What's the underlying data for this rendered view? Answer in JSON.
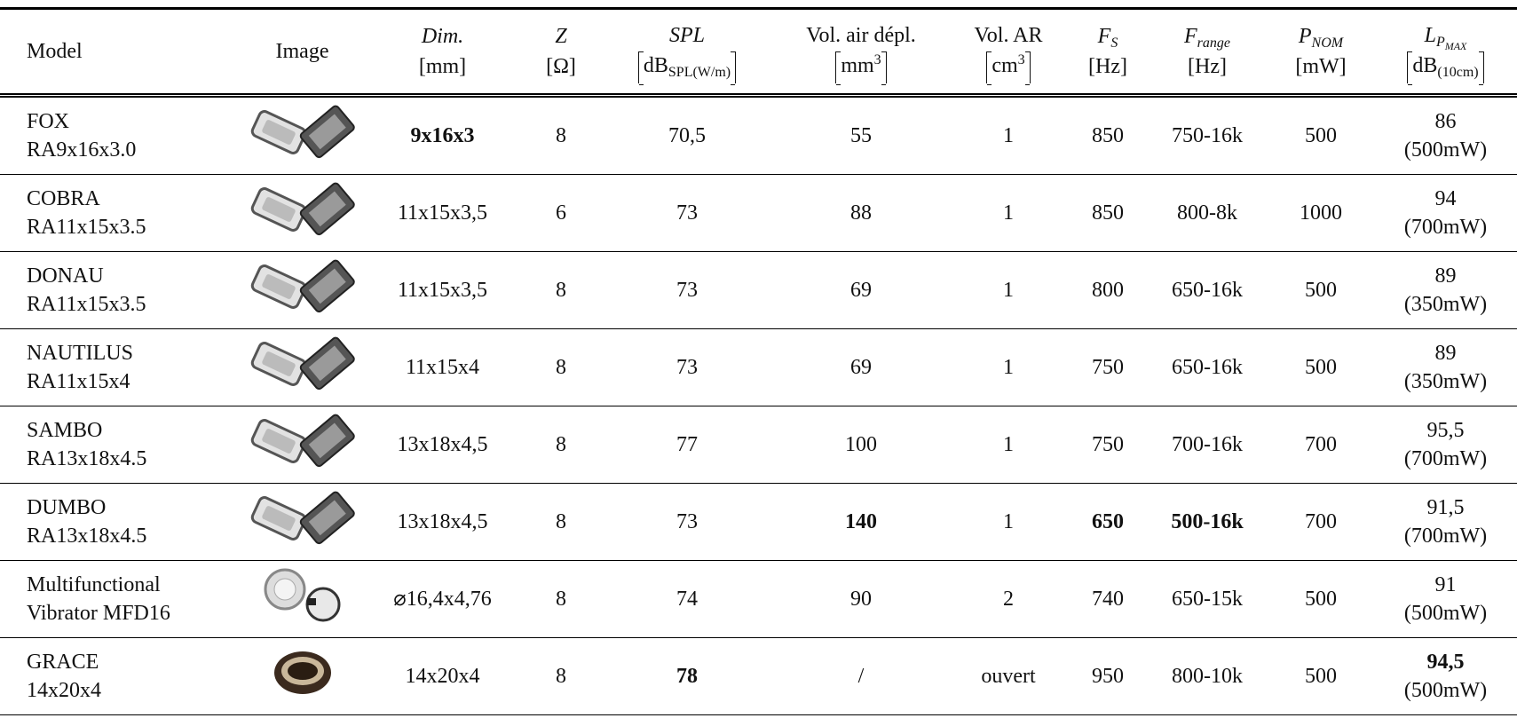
{
  "header": [
    {
      "name": "Model"
    },
    {
      "name": "Image"
    },
    {
      "name": "Dim.",
      "math": true,
      "unit": "[mm]"
    },
    {
      "name": "Z",
      "math": true,
      "unit": "[Ω]"
    },
    {
      "name": "SPL",
      "math": true,
      "unit": "dB",
      "unit_sub": "SPL(W/m)"
    },
    {
      "name": "Vol. air dépl.",
      "unit": "mm",
      "unit_sup": "3"
    },
    {
      "name": "Vol. AR",
      "unit": "cm",
      "unit_sup": "3"
    },
    {
      "name": "F",
      "math": true,
      "name_sub": "S",
      "unit": "[Hz]"
    },
    {
      "name": "F",
      "math": true,
      "name_sub": "range",
      "unit": "[Hz]"
    },
    {
      "name": "P",
      "math": true,
      "name_sub": "NOM",
      "unit": "[mW]"
    },
    {
      "name": "L",
      "math": true,
      "name_sub": "P",
      "name_subsub": "MAX",
      "unit": "dB",
      "unit_sub": "(10cm)"
    }
  ],
  "rows": [
    {
      "model": [
        "FOX",
        "RA9x16x3.0"
      ],
      "dim": "9x16x3",
      "z": "8",
      "spl": "70,5",
      "vol_air": "55",
      "vol_ar": "1",
      "fs": "850",
      "frange": "750-16k",
      "pnom": "500",
      "lmax": [
        "86",
        "(500mW)"
      ],
      "bold": [
        "dim"
      ]
    },
    {
      "model": [
        "COBRA",
        "RA11x15x3.5"
      ],
      "dim": "11x15x3,5",
      "z": "6",
      "spl": "73",
      "vol_air": "88",
      "vol_ar": "1",
      "fs": "850",
      "frange": "800-8k",
      "pnom": "1000",
      "lmax": [
        "94",
        "(700mW)"
      ],
      "bold": []
    },
    {
      "model": [
        "DONAU",
        "RA11x15x3.5"
      ],
      "dim": "11x15x3,5",
      "z": "8",
      "spl": "73",
      "vol_air": "69",
      "vol_ar": "1",
      "fs": "800",
      "frange": "650-16k",
      "pnom": "500",
      "lmax": [
        "89",
        "(350mW)"
      ],
      "bold": []
    },
    {
      "model": [
        "NAUTILUS",
        "RA11x15x4"
      ],
      "dim": "11x15x4",
      "z": "8",
      "spl": "73",
      "vol_air": "69",
      "vol_ar": "1",
      "fs": "750",
      "frange": "650-16k",
      "pnom": "500",
      "lmax": [
        "89",
        "(350mW)"
      ],
      "bold": []
    },
    {
      "model": [
        "SAMBO",
        "RA13x18x4.5"
      ],
      "dim": "13x18x4,5",
      "z": "8",
      "spl": "77",
      "vol_air": "100",
      "vol_ar": "1",
      "fs": "750",
      "frange": "700-16k",
      "pnom": "700",
      "lmax": [
        "95,5",
        "(700mW)"
      ],
      "bold": []
    },
    {
      "model": [
        "DUMBO",
        "RA13x18x4.5"
      ],
      "dim": "13x18x4,5",
      "z": "8",
      "spl": "73",
      "vol_air": "140",
      "vol_ar": "1",
      "fs": "650",
      "frange": "500-16k",
      "pnom": "700",
      "lmax": [
        "91,5",
        "(700mW)"
      ],
      "bold": [
        "vol_air",
        "fs",
        "frange"
      ]
    },
    {
      "model": [
        "Multifunctional",
        "Vibrator MFD16"
      ],
      "dim": "⌀16,4x4,76",
      "z": "8",
      "spl": "74",
      "vol_air": "90",
      "vol_ar": "2",
      "fs": "740",
      "frange": "650-15k",
      "pnom": "500",
      "lmax": [
        "91",
        "(500mW)"
      ],
      "bold": []
    },
    {
      "model": [
        "GRACE",
        "14x20x4"
      ],
      "dim": "14x20x4",
      "z": "8",
      "spl": "78",
      "vol_air": "/",
      "vol_ar": "ouvert",
      "fs": "950",
      "frange": "800-10k",
      "pnom": "500",
      "lmax": [
        "94,5",
        "(500mW)"
      ],
      "bold": [
        "spl",
        "lmax"
      ]
    }
  ]
}
